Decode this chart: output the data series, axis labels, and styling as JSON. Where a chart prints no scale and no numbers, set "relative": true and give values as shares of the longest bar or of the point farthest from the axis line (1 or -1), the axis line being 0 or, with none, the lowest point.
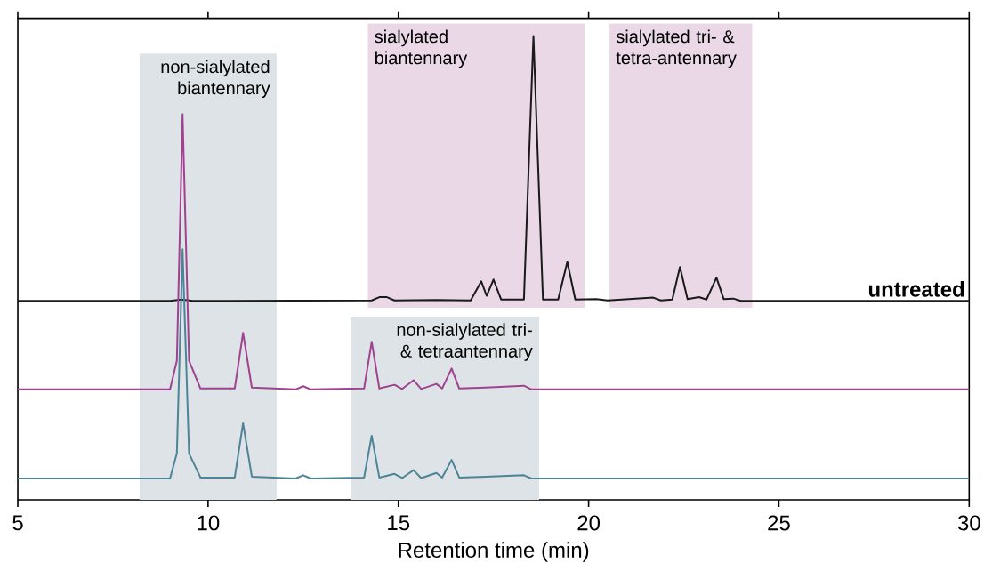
{
  "chart_data": {
    "type": "line",
    "relative": true,
    "xlabel": "Retention time (min)",
    "xlim": [
      5,
      30
    ],
    "xticks": [
      5,
      10,
      15,
      20,
      25,
      30
    ],
    "tick_labels": "x",
    "grid": false,
    "bands": [
      {
        "axis": "x",
        "from": 8.2,
        "to": 11.8,
        "label": "non-sialylated biantennary",
        "color": "#dde3e6"
      },
      {
        "axis": "x",
        "from": 14.2,
        "to": 19.9,
        "label": "sialylated biantennary",
        "color": "#ead8e7"
      },
      {
        "axis": "x",
        "from": 20.55,
        "to": 24.3,
        "label": "sialylated tri- & tetra-antennary",
        "color": "#ead8e7"
      },
      {
        "axis": "x",
        "from": 13.75,
        "to": 18.7,
        "label": "non-sialylated tri- & tetraantennary",
        "color": "#dde3e6"
      }
    ],
    "series": [
      {
        "name": "untreated",
        "color": "#1a1a1a",
        "x": [
          5,
          9.0,
          9.3,
          9.6,
          14.3,
          14.5,
          14.7,
          14.9,
          16.0,
          16.9,
          17.18,
          17.32,
          17.5,
          17.7,
          18.3,
          18.55,
          18.8,
          19.2,
          19.44,
          19.65,
          20.2,
          20.5,
          21.7,
          21.9,
          22.2,
          22.4,
          22.6,
          22.9,
          23.1,
          23.36,
          23.55,
          23.8,
          24.0,
          30
        ],
        "values": [
          0.429,
          0.429,
          0.432,
          0.429,
          0.43,
          0.437,
          0.437,
          0.43,
          0.431,
          0.43,
          0.471,
          0.44,
          0.475,
          0.432,
          0.432,
          1.0,
          0.432,
          0.432,
          0.513,
          0.432,
          0.433,
          0.43,
          0.436,
          0.43,
          0.432,
          0.502,
          0.433,
          0.437,
          0.432,
          0.479,
          0.433,
          0.434,
          0.429,
          0.429
        ]
      },
      {
        "color": "#a0428f",
        "x": [
          5,
          9.0,
          9.18,
          9.33,
          9.5,
          9.8,
          10.7,
          10.92,
          11.15,
          12.3,
          12.5,
          12.7,
          14.1,
          14.3,
          14.5,
          14.9,
          15.1,
          15.4,
          15.6,
          16.0,
          16.15,
          16.4,
          16.6,
          17.3,
          18.3,
          18.5,
          30
        ],
        "values": [
          0.238,
          0.238,
          0.3,
          0.831,
          0.3,
          0.24,
          0.24,
          0.36,
          0.242,
          0.238,
          0.245,
          0.238,
          0.24,
          0.341,
          0.24,
          0.248,
          0.239,
          0.258,
          0.239,
          0.25,
          0.24,
          0.283,
          0.24,
          0.242,
          0.246,
          0.238,
          0.238
        ]
      },
      {
        "color": "#4e8497",
        "x": [
          5,
          9.0,
          9.18,
          9.33,
          9.5,
          9.8,
          10.7,
          10.92,
          11.15,
          12.3,
          12.5,
          12.7,
          14.1,
          14.3,
          14.5,
          14.9,
          15.1,
          15.4,
          15.6,
          16.0,
          16.15,
          16.4,
          16.6,
          17.3,
          18.3,
          18.5,
          30
        ],
        "values": [
          0.046,
          0.046,
          0.1,
          0.54,
          0.1,
          0.048,
          0.048,
          0.165,
          0.05,
          0.046,
          0.053,
          0.046,
          0.048,
          0.138,
          0.048,
          0.056,
          0.047,
          0.064,
          0.047,
          0.058,
          0.048,
          0.086,
          0.048,
          0.05,
          0.053,
          0.046,
          0.046
        ]
      }
    ]
  }
}
